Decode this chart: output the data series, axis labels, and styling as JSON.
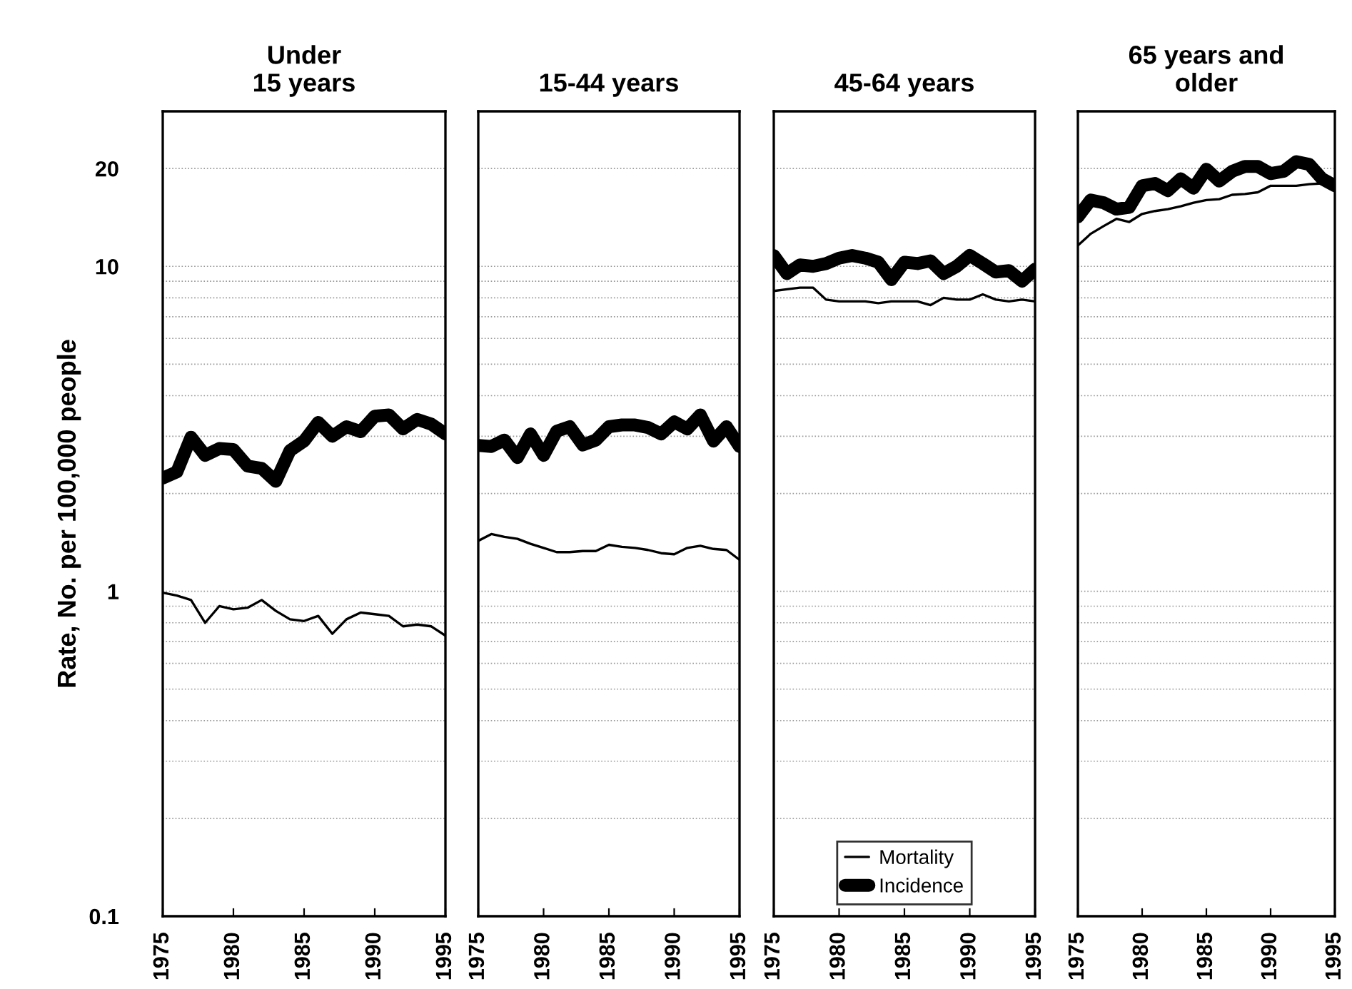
{
  "chart_data": [
    {
      "type": "line",
      "title": "Under\n15 years",
      "ylabel": "Rate, No. per 100,000 people",
      "x": [
        1975,
        1976,
        1977,
        1978,
        1979,
        1980,
        1981,
        1982,
        1983,
        1984,
        1985,
        1986,
        1987,
        1988,
        1989,
        1990,
        1991,
        1992,
        1993,
        1994,
        1995
      ],
      "series": [
        {
          "color": "#000000",
          "values": [
            0.99,
            0.97,
            0.94,
            0.8,
            0.9,
            0.88,
            0.89,
            0.94,
            0.87,
            0.82,
            0.81,
            0.84,
            0.74,
            0.82,
            0.86,
            0.85,
            0.84,
            0.78,
            0.79,
            0.78,
            0.73
          ]
        },
        {
          "color": "#000000",
          "values": [
            2.23,
            2.33,
            2.98,
            2.62,
            2.75,
            2.73,
            2.43,
            2.39,
            2.18,
            2.71,
            2.9,
            3.31,
            3.0,
            3.21,
            3.1,
            3.46,
            3.49,
            3.16,
            3.38,
            3.27,
            3.05
          ]
        }
      ],
      "log": "y",
      "ylim": [
        0.1,
        30
      ],
      "yticks": [
        0.1,
        {
          "value": 0.2,
          "label": null
        },
        {
          "value": 0.3,
          "label": null
        },
        {
          "value": 0.4,
          "label": null
        },
        {
          "value": 0.5,
          "label": null
        },
        {
          "value": 0.6,
          "label": null
        },
        {
          "value": 0.7,
          "label": null
        },
        {
          "value": 0.8,
          "label": null
        },
        {
          "value": 0.9,
          "label": null
        },
        1,
        {
          "value": 2,
          "label": null
        },
        {
          "value": 3,
          "label": null
        },
        {
          "value": 4,
          "label": null
        },
        {
          "value": 5,
          "label": null
        },
        {
          "value": 6,
          "label": null
        },
        {
          "value": 7,
          "label": null
        },
        {
          "value": 8,
          "label": null
        },
        {
          "value": 9,
          "label": null
        },
        10,
        20
      ],
      "xlim": [
        1975,
        1995
      ],
      "xticks": [
        1975,
        1980,
        1985,
        1990,
        1995
      ],
      "grid": "y"
    },
    {
      "type": "line",
      "title": "15-44 years",
      "x": [
        1975,
        1976,
        1977,
        1978,
        1979,
        1980,
        1981,
        1982,
        1983,
        1984,
        1985,
        1986,
        1987,
        1988,
        1989,
        1990,
        1991,
        1992,
        1993,
        1994,
        1995
      ],
      "series": [
        {
          "color": "#000000",
          "values": [
            1.43,
            1.5,
            1.47,
            1.45,
            1.4,
            1.36,
            1.32,
            1.32,
            1.33,
            1.33,
            1.39,
            1.37,
            1.36,
            1.34,
            1.31,
            1.3,
            1.36,
            1.38,
            1.35,
            1.34,
            1.25
          ]
        },
        {
          "color": "#000000",
          "values": [
            2.81,
            2.79,
            2.92,
            2.58,
            3.05,
            2.62,
            3.11,
            3.21,
            2.82,
            2.92,
            3.21,
            3.25,
            3.25,
            3.19,
            3.05,
            3.32,
            3.16,
            3.49,
            2.9,
            3.21,
            2.79
          ]
        }
      ],
      "log": "y",
      "ylim": [
        0.1,
        30
      ],
      "yticks": [
        0.1,
        {
          "value": 0.2,
          "label": null
        },
        {
          "value": 0.3,
          "label": null
        },
        {
          "value": 0.4,
          "label": null
        },
        {
          "value": 0.5,
          "label": null
        },
        {
          "value": 0.6,
          "label": null
        },
        {
          "value": 0.7,
          "label": null
        },
        {
          "value": 0.8,
          "label": null
        },
        {
          "value": 0.9,
          "label": null
        },
        1,
        {
          "value": 2,
          "label": null
        },
        {
          "value": 3,
          "label": null
        },
        {
          "value": 4,
          "label": null
        },
        {
          "value": 5,
          "label": null
        },
        {
          "value": 6,
          "label": null
        },
        {
          "value": 7,
          "label": null
        },
        {
          "value": 8,
          "label": null
        },
        {
          "value": 9,
          "label": null
        },
        10,
        20
      ],
      "xlim": [
        1975,
        1995
      ],
      "xticks": [
        1975,
        1980,
        1985,
        1990,
        1995
      ],
      "grid": "y",
      "tick_labels": "x"
    },
    {
      "type": "line",
      "title": "45-64 years",
      "x": [
        1975,
        1976,
        1977,
        1978,
        1979,
        1980,
        1981,
        1982,
        1983,
        1984,
        1985,
        1986,
        1987,
        1988,
        1989,
        1990,
        1991,
        1992,
        1993,
        1994,
        1995
      ],
      "series": [
        {
          "name": "Mortality",
          "color": "#000000",
          "values": [
            8.4,
            8.5,
            8.6,
            8.6,
            7.9,
            7.8,
            7.8,
            7.8,
            7.7,
            7.8,
            7.8,
            7.8,
            7.6,
            8.0,
            7.9,
            7.9,
            8.2,
            7.9,
            7.8,
            7.9,
            7.8
          ]
        },
        {
          "name": "Incidence",
          "color": "#000000",
          "values": [
            10.8,
            9.5,
            10.1,
            10.0,
            10.2,
            10.6,
            10.8,
            10.6,
            10.3,
            9.1,
            10.3,
            10.2,
            10.4,
            9.5,
            10.0,
            10.8,
            10.2,
            9.6,
            9.7,
            9.0,
            9.8
          ]
        }
      ],
      "log": "y",
      "ylim": [
        0.1,
        30
      ],
      "yticks": [
        0.1,
        {
          "value": 0.2,
          "label": null
        },
        {
          "value": 0.3,
          "label": null
        },
        {
          "value": 0.4,
          "label": null
        },
        {
          "value": 0.5,
          "label": null
        },
        {
          "value": 0.6,
          "label": null
        },
        {
          "value": 0.7,
          "label": null
        },
        {
          "value": 0.8,
          "label": null
        },
        {
          "value": 0.9,
          "label": null
        },
        1,
        {
          "value": 2,
          "label": null
        },
        {
          "value": 3,
          "label": null
        },
        {
          "value": 4,
          "label": null
        },
        {
          "value": 5,
          "label": null
        },
        {
          "value": 6,
          "label": null
        },
        {
          "value": 7,
          "label": null
        },
        {
          "value": 8,
          "label": null
        },
        {
          "value": 9,
          "label": null
        },
        10,
        20
      ],
      "xlim": [
        1975,
        1995
      ],
      "xticks": [
        1975,
        1980,
        1985,
        1990,
        1995
      ],
      "grid": "y",
      "tick_labels": "x",
      "legend": "bottom"
    },
    {
      "type": "line",
      "title": "65 years and\nolder",
      "x": [
        1975,
        1976,
        1977,
        1978,
        1979,
        1980,
        1981,
        1982,
        1983,
        1984,
        1985,
        1986,
        1987,
        1988,
        1989,
        1990,
        1991,
        1992,
        1993,
        1994,
        1995
      ],
      "series": [
        {
          "color": "#000000",
          "values": [
            11.6,
            12.6,
            13.3,
            14.0,
            13.7,
            14.5,
            14.8,
            15.0,
            15.3,
            15.7,
            16.0,
            16.1,
            16.6,
            16.7,
            16.9,
            17.7,
            17.7,
            17.7,
            17.9,
            18.0,
            17.9
          ]
        },
        {
          "color": "#000000",
          "values": [
            14.2,
            16.0,
            15.7,
            15.0,
            15.2,
            17.7,
            18.0,
            17.1,
            18.6,
            17.4,
            19.9,
            18.3,
            19.6,
            20.3,
            20.3,
            19.3,
            19.6,
            21.0,
            20.6,
            18.6,
            17.7
          ]
        }
      ],
      "log": "y",
      "ylim": [
        0.1,
        30
      ],
      "yticks": [
        0.1,
        {
          "value": 0.2,
          "label": null
        },
        {
          "value": 0.3,
          "label": null
        },
        {
          "value": 0.4,
          "label": null
        },
        {
          "value": 0.5,
          "label": null
        },
        {
          "value": 0.6,
          "label": null
        },
        {
          "value": 0.7,
          "label": null
        },
        {
          "value": 0.8,
          "label": null
        },
        {
          "value": 0.9,
          "label": null
        },
        1,
        {
          "value": 2,
          "label": null
        },
        {
          "value": 3,
          "label": null
        },
        {
          "value": 4,
          "label": null
        },
        {
          "value": 5,
          "label": null
        },
        {
          "value": 6,
          "label": null
        },
        {
          "value": 7,
          "label": null
        },
        {
          "value": 8,
          "label": null
        },
        {
          "value": 9,
          "label": null
        },
        10,
        20
      ],
      "xlim": [
        1975,
        1995
      ],
      "xticks": [
        1975,
        1980,
        1985,
        1990,
        1995
      ],
      "grid": "y",
      "tick_labels": "x"
    }
  ]
}
